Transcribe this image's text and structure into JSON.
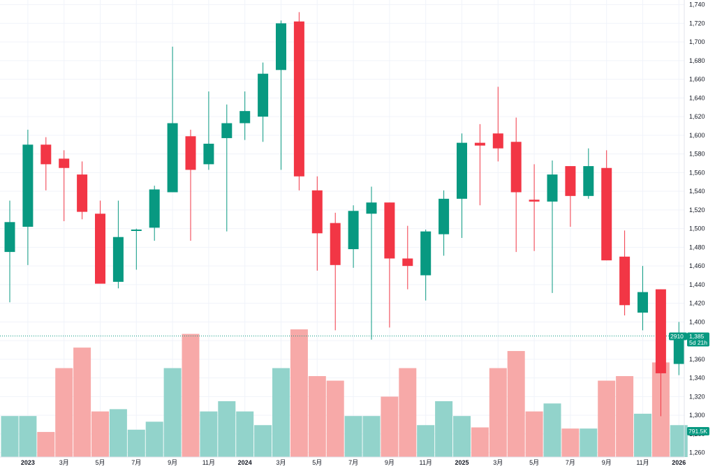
{
  "colors": {
    "up": "#089981",
    "down": "#f23645",
    "volume_up": "#92d3cb",
    "volume_down": "#f7a9a8",
    "grid": "#f0f3fa",
    "text": "#131722",
    "price_line": "#089981",
    "volume_tag": "#089981"
  },
  "chart_data": {
    "type": "candlestick",
    "interval": "monthly",
    "price_axis": {
      "range": [
        1250,
        1745
      ],
      "ticks": [
        1260,
        1280,
        1300,
        1320,
        1340,
        1360,
        1380,
        1400,
        1420,
        1440,
        1460,
        1480,
        1500,
        1520,
        1540,
        1560,
        1580,
        1600,
        1620,
        1640,
        1660,
        1680,
        1700,
        1720,
        1740
      ],
      "tick_labels": [
        "1,260",
        "1,280",
        "1,300",
        "1,320",
        "1,340",
        "1,360",
        "1,380",
        "1,400",
        "1,420",
        "1,440",
        "1,460",
        "1,480",
        "1,500",
        "1,520",
        "1,540",
        "1,560",
        "1,580",
        "1,600",
        "1,620",
        "1,640",
        "1,660",
        "1,680",
        "1,700",
        "1,720",
        "1,740"
      ]
    },
    "time_axis": {
      "labels": [
        {
          "index": 1,
          "text": "2023",
          "bold": true
        },
        {
          "index": 3,
          "text": "3月",
          "bold": false
        },
        {
          "index": 5,
          "text": "5月",
          "bold": false
        },
        {
          "index": 7,
          "text": "7月",
          "bold": false
        },
        {
          "index": 9,
          "text": "9月",
          "bold": false
        },
        {
          "index": 11,
          "text": "11月",
          "bold": false
        },
        {
          "index": 13,
          "text": "2024",
          "bold": true
        },
        {
          "index": 15,
          "text": "3月",
          "bold": false
        },
        {
          "index": 17,
          "text": "5月",
          "bold": false
        },
        {
          "index": 19,
          "text": "7月",
          "bold": false
        },
        {
          "index": 21,
          "text": "9月",
          "bold": false
        },
        {
          "index": 23,
          "text": "11月",
          "bold": false
        },
        {
          "index": 25,
          "text": "2025",
          "bold": true
        },
        {
          "index": 27,
          "text": "3月",
          "bold": false
        },
        {
          "index": 29,
          "text": "5月",
          "bold": false
        },
        {
          "index": 31,
          "text": "7月",
          "bold": false
        },
        {
          "index": 33,
          "text": "9月",
          "bold": false
        },
        {
          "index": 35,
          "text": "11月",
          "bold": false
        },
        {
          "index": 37,
          "text": "2026",
          "bold": true
        }
      ]
    },
    "candles": [
      {
        "o": 1475,
        "h": 1530,
        "l": 1421,
        "c": 1507
      },
      {
        "o": 1502,
        "h": 1606,
        "l": 1461,
        "c": 1590
      },
      {
        "o": 1590,
        "h": 1598,
        "l": 1541,
        "c": 1569
      },
      {
        "o": 1575,
        "h": 1584,
        "l": 1508,
        "c": 1565
      },
      {
        "o": 1558,
        "h": 1572,
        "l": 1510,
        "c": 1518
      },
      {
        "o": 1516,
        "h": 1530,
        "l": 1441,
        "c": 1441
      },
      {
        "o": 1443,
        "h": 1530,
        "l": 1436,
        "c": 1491
      },
      {
        "o": 1498,
        "h": 1500,
        "l": 1456,
        "c": 1499
      },
      {
        "o": 1501,
        "h": 1546,
        "l": 1487,
        "c": 1542
      },
      {
        "o": 1539,
        "h": 1695,
        "l": 1539,
        "c": 1613
      },
      {
        "o": 1599,
        "h": 1606,
        "l": 1487,
        "c": 1563
      },
      {
        "o": 1569,
        "h": 1647,
        "l": 1563,
        "c": 1591
      },
      {
        "o": 1597,
        "h": 1633,
        "l": 1497,
        "c": 1613
      },
      {
        "o": 1613,
        "h": 1647,
        "l": 1595,
        "c": 1626
      },
      {
        "o": 1620,
        "h": 1678,
        "l": 1593,
        "c": 1666
      },
      {
        "o": 1670,
        "h": 1723,
        "l": 1563,
        "c": 1720
      },
      {
        "o": 1722,
        "h": 1732,
        "l": 1541,
        "c": 1556
      },
      {
        "o": 1541,
        "h": 1556,
        "l": 1455,
        "c": 1495
      },
      {
        "o": 1506,
        "h": 1517,
        "l": 1391,
        "c": 1461
      },
      {
        "o": 1478,
        "h": 1525,
        "l": 1458,
        "c": 1519
      },
      {
        "o": 1516,
        "h": 1545,
        "l": 1381,
        "c": 1528
      },
      {
        "o": 1528,
        "h": 1528,
        "l": 1394,
        "c": 1468
      },
      {
        "o": 1468,
        "h": 1503,
        "l": 1435,
        "c": 1460
      },
      {
        "o": 1450,
        "h": 1499,
        "l": 1423,
        "c": 1497
      },
      {
        "o": 1494,
        "h": 1541,
        "l": 1471,
        "c": 1532
      },
      {
        "o": 1532,
        "h": 1602,
        "l": 1490,
        "c": 1592
      },
      {
        "o": 1592,
        "h": 1612,
        "l": 1525,
        "c": 1589
      },
      {
        "o": 1602,
        "h": 1652,
        "l": 1572,
        "c": 1586
      },
      {
        "o": 1593,
        "h": 1619,
        "l": 1475,
        "c": 1539
      },
      {
        "o": 1531,
        "h": 1569,
        "l": 1476,
        "c": 1529
      },
      {
        "o": 1529,
        "h": 1573,
        "l": 1431,
        "c": 1558
      },
      {
        "o": 1567,
        "h": 1567,
        "l": 1502,
        "c": 1535
      },
      {
        "o": 1535,
        "h": 1586,
        "l": 1532,
        "c": 1567
      },
      {
        "o": 1565,
        "h": 1584,
        "l": 1466,
        "c": 1466
      },
      {
        "o": 1470,
        "h": 1498,
        "l": 1407,
        "c": 1418
      },
      {
        "o": 1410,
        "h": 1460,
        "l": 1391,
        "c": 1432
      },
      {
        "o": 1435,
        "h": 1435,
        "l": 1299,
        "c": 1345
      },
      {
        "o": 1355,
        "h": 1400,
        "l": 1343,
        "c": 1385
      }
    ],
    "volume_rel": [
      0.36,
      0.36,
      0.22,
      0.78,
      0.96,
      0.4,
      0.42,
      0.24,
      0.31,
      0.78,
      1.08,
      0.4,
      0.49,
      0.4,
      0.28,
      0.78,
      1.12,
      0.71,
      0.67,
      0.36,
      0.36,
      0.53,
      0.78,
      0.28,
      0.49,
      0.36,
      0.26,
      0.78,
      0.93,
      0.4,
      0.47,
      0.25,
      0.25,
      0.67,
      0.71,
      0.38,
      0.83,
      0.28
    ],
    "last_price": {
      "value": 1385,
      "label": "1,385",
      "volume_label": "2910",
      "countdown": "5d 21h"
    },
    "volume_tag": "791.5K"
  }
}
